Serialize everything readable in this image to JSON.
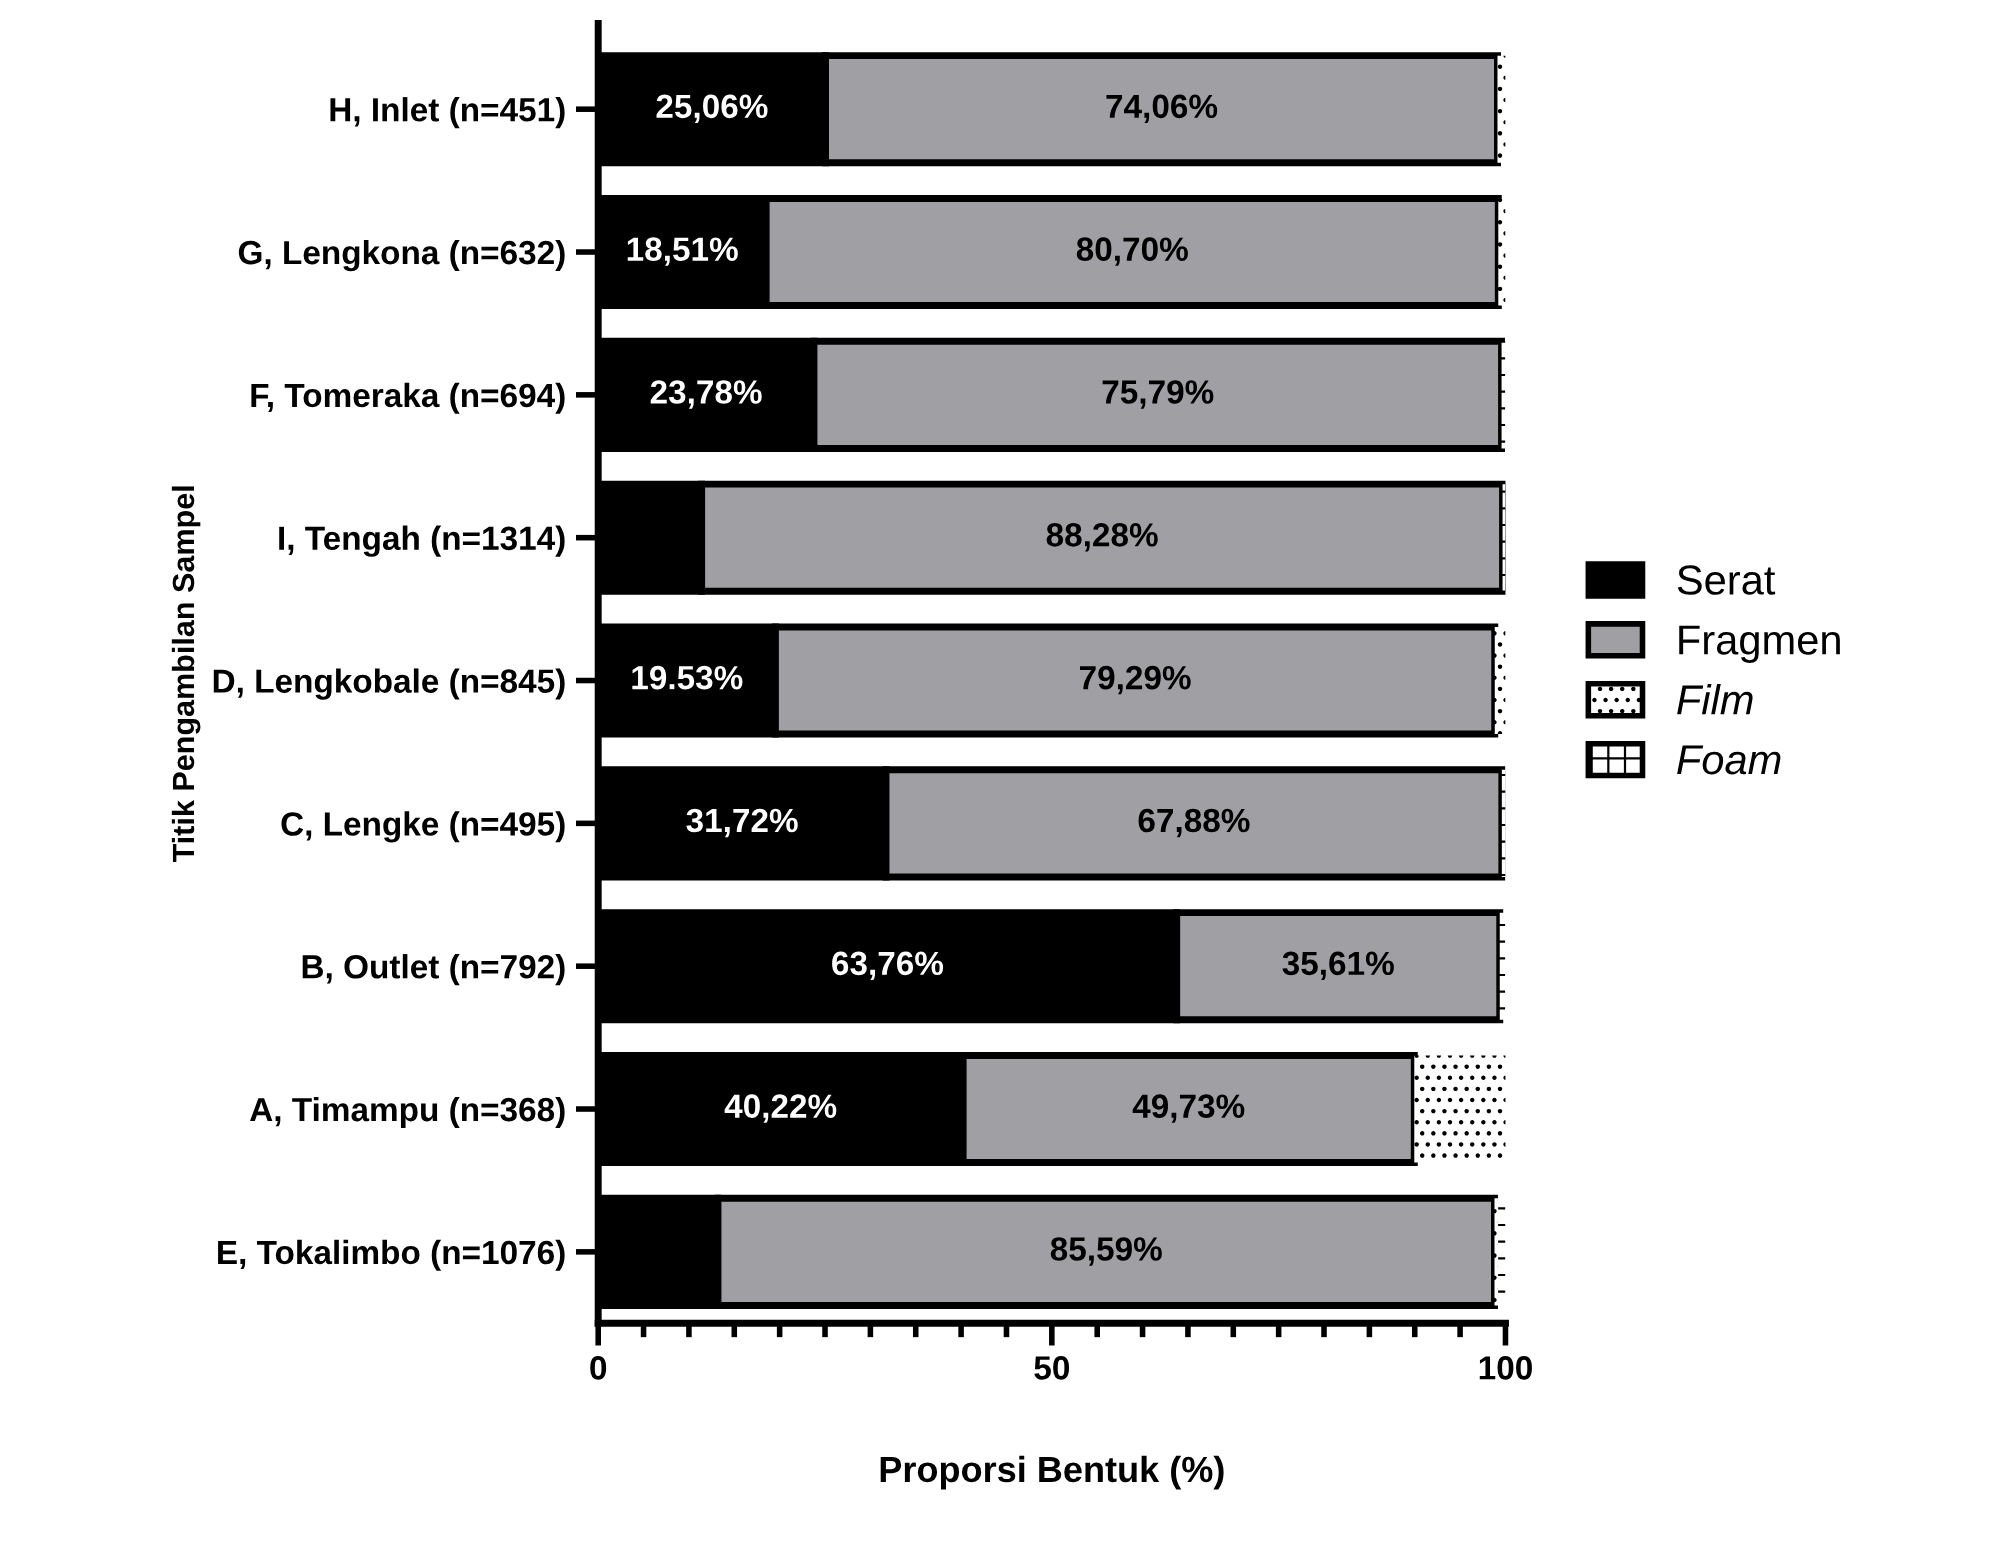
{
  "chart_data": {
    "type": "bar",
    "orientation": "horizontal",
    "stacked": true,
    "xlabel": "Proporsi Bentuk (%)",
    "ylabel": "Titik Pengambilan Sampel",
    "categories": [
      "H, Inlet (n=451)",
      "G, Lengkona (n=632)",
      "F, Tomeraka (n=694)",
      "I, Tengah (n=1314)",
      "D, Lengkobale (n=845)",
      "C, Lengke (n=495)",
      "B, Outlet (n=792)",
      "A, Timampu (n=368)",
      "E, Tokalimbo (n=1076)"
    ],
    "series": [
      {
        "name": "Serat",
        "color": "#000000",
        "values": [
          25.06,
          18.51,
          23.78,
          11.4,
          19.53,
          31.72,
          63.76,
          40.22,
          13.2
        ],
        "value_labels": [
          "25,06%",
          "18,51%",
          "23,78%",
          null,
          "19.53%",
          "31,72%",
          "63,76%",
          "40,22%",
          null
        ]
      },
      {
        "name": "Fragmen",
        "color": "#a0a0a4",
        "values": [
          74.06,
          80.7,
          75.79,
          88.28,
          79.29,
          67.88,
          35.61,
          49.73,
          85.59
        ],
        "value_labels": [
          "74,06%",
          "80,70%",
          "75,79%",
          "88,28%",
          "79,29%",
          "67,88%",
          "35,61%",
          "49,73%",
          "85,59%"
        ]
      },
      {
        "name": "Film",
        "color": "#ffffff",
        "values": [
          0.9,
          0.8,
          null,
          null,
          1.2,
          null,
          null,
          10.1,
          0.4
        ]
      },
      {
        "name": "Foam",
        "color": "#ffffff",
        "values": [
          null,
          null,
          0.4,
          0.3,
          null,
          0.4,
          0.6,
          null,
          0.8
        ]
      }
    ],
    "xlim": [
      0,
      100
    ],
    "xticks": [
      0,
      50,
      100
    ],
    "grid": false,
    "legend": "right"
  }
}
